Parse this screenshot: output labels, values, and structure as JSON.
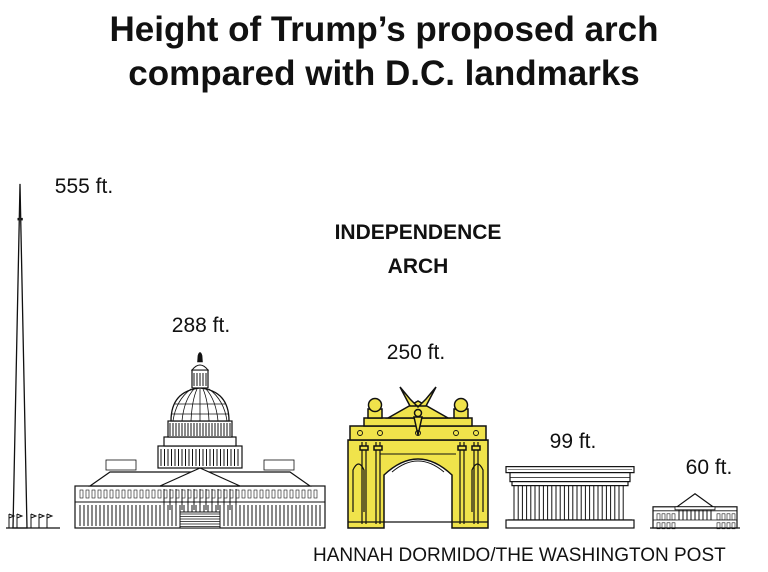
{
  "title_lines": [
    "Height of Trump’s proposed arch",
    "compared with D.C. landmarks"
  ],
  "credit": "HANNAH DORMIDO/THE WASHINGTON POST",
  "colors": {
    "arch_fill": "#f0e34b",
    "outline": "#111111",
    "background": "#ffffff"
  },
  "chart_data": {
    "type": "bar",
    "title": "Height of Trump’s proposed arch compared with D.C. landmarks",
    "categories": [
      "Washington Monument",
      "U.S. Capitol",
      "Independence Arch",
      "Lincoln Memorial",
      "White House"
    ],
    "values": [
      555,
      288,
      250,
      99,
      60
    ],
    "value_labels": [
      "555 ft.",
      "288 ft.",
      "250 ft.",
      "99 ft.",
      "60 ft."
    ],
    "unit": "ft.",
    "highlighted_name_lines": [
      "INDEPENDENCE",
      "ARCH"
    ],
    "highlight_color": "#f0e34b",
    "icons": [
      "obelisk-icon",
      "capitol-icon",
      "arch-icon",
      "memorial-icon",
      "white-house-icon"
    ]
  }
}
